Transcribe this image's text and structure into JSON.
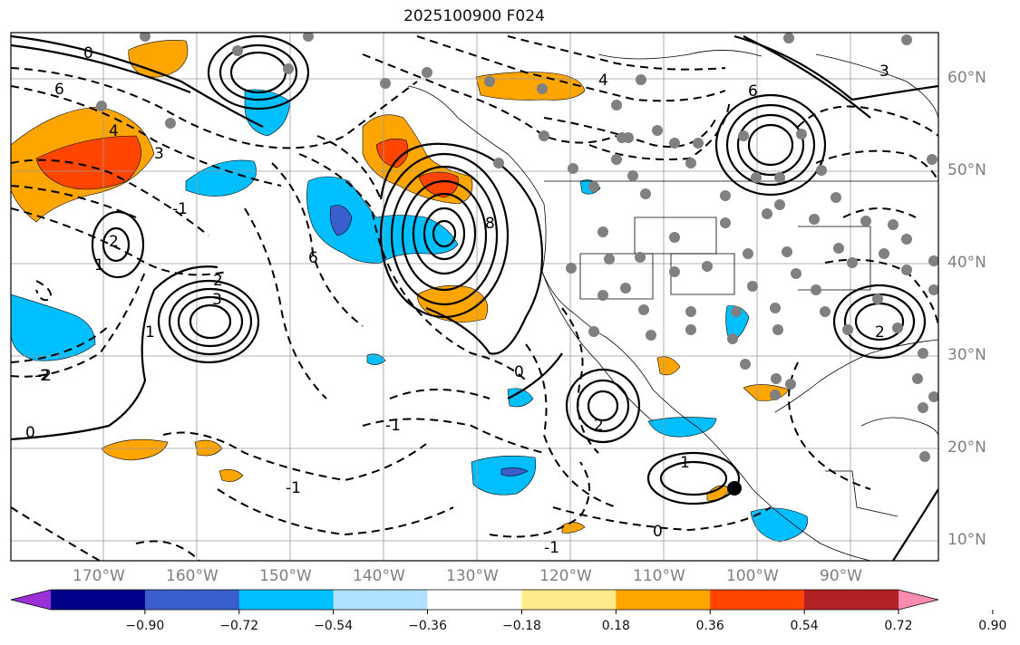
{
  "title": "2025100900 F024",
  "map": {
    "lat_labels": [
      "60°N",
      "50°N",
      "40°N",
      "30°N",
      "20°N",
      "10°N"
    ],
    "lon_labels": [
      "170°W",
      "160°W",
      "150°W",
      "140°W",
      "130°W",
      "120°W",
      "110°W",
      "100°W",
      "90°W"
    ],
    "contour_labels": [
      "0",
      "6",
      "3",
      "2",
      "4",
      "-1",
      "-2",
      "8",
      "1",
      "0",
      "-1",
      "6",
      "4",
      "2",
      "3",
      "-2",
      "1",
      "0",
      "-1",
      "2",
      "1",
      "0",
      "6",
      "3",
      "2",
      "-1"
    ]
  },
  "colorbar": {
    "ticks": [
      "−0.90",
      "−0.72",
      "−0.54",
      "−0.36",
      "−0.18",
      "0.18",
      "0.36",
      "0.54",
      "0.72",
      "0.90"
    ],
    "colors": [
      "#9b30d9",
      "#00008b",
      "#3a5fcd",
      "#00bfff",
      "#b0e2ff",
      "#ffffff",
      "#ffeb8a",
      "#ffa500",
      "#ff4500",
      "#b22222",
      "#ff8cb0"
    ]
  },
  "colors": {
    "orange": "#ffa500",
    "red": "#ff4500",
    "cyan": "#00bfff",
    "blue": "#3a5fcd",
    "dot": "#808080",
    "label": "#7f7f7f"
  }
}
